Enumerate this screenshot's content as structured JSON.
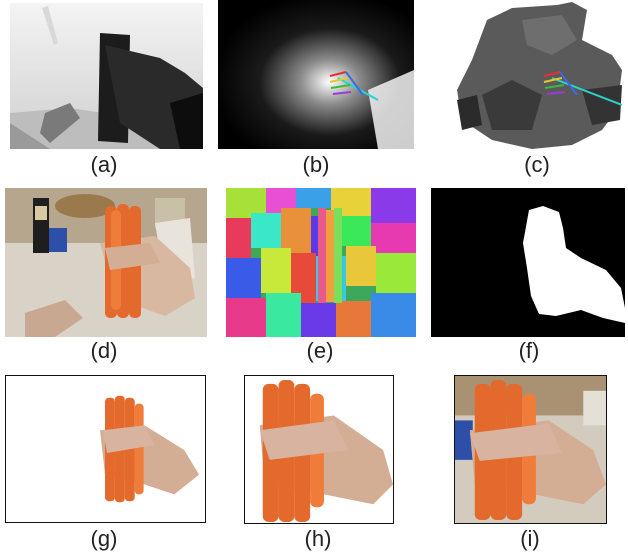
{
  "figure": {
    "captions": {
      "a": "(a)",
      "b": "(b)",
      "c": "(c)",
      "d": "(d)",
      "e": "(e)",
      "f": "(f)",
      "g": "(g)",
      "h": "(h)",
      "i": "(i)"
    }
  }
}
